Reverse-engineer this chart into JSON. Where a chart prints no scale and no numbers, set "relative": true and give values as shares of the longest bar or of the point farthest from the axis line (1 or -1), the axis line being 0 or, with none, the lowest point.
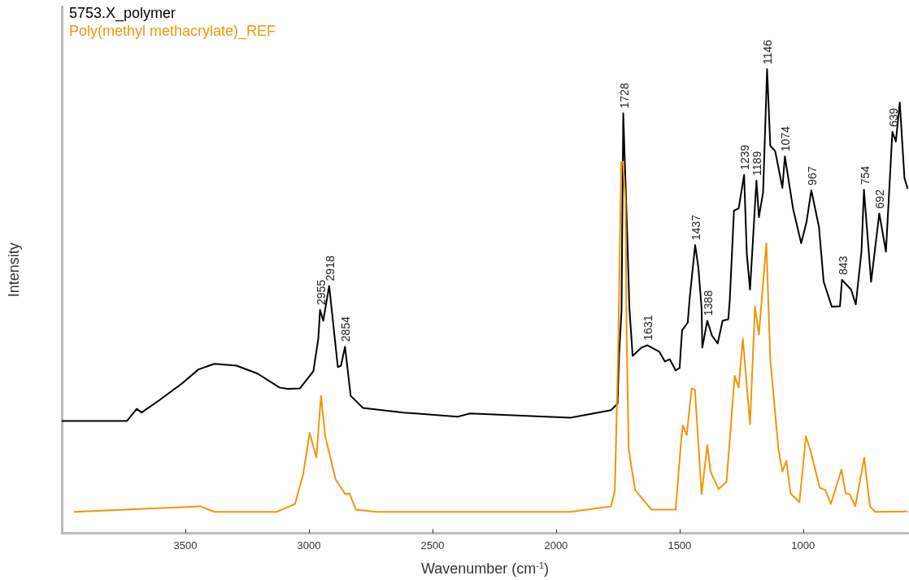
{
  "chart_data": {
    "type": "line",
    "relative": true,
    "xlabel": "Wavenumber (cm$^{-1}$)",
    "ylabel": "Intensity",
    "xlim": [
      4000,
      575
    ],
    "xticks": [
      3500,
      3000,
      2500,
      2000,
      1500,
      1000
    ],
    "legend": "top left",
    "grid": false,
    "marker": "none",
    "line_style": "solid",
    "series": [
      {
        "name": "5753.X_polymer",
        "color": "#000000",
        "x": [
          4000,
          3736,
          3697,
          3677,
          3602,
          3513,
          3447,
          3382,
          3293,
          3208,
          3119,
          3087,
          3037,
          2982,
          2962,
          2955,
          2942,
          2918,
          2883,
          2870,
          2854,
          2831,
          2781,
          2617,
          2398,
          2348,
          1942,
          1778,
          1751,
          1745,
          1735,
          1728,
          1713,
          1703,
          1690,
          1654,
          1631,
          1582,
          1559,
          1540,
          1516,
          1500,
          1490,
          1467,
          1460,
          1437,
          1424,
          1411,
          1408,
          1388,
          1369,
          1346,
          1326,
          1303,
          1297,
          1280,
          1261,
          1239,
          1228,
          1215,
          1189,
          1179,
          1162,
          1146,
          1133,
          1113,
          1084,
          1074,
          1041,
          1008,
          986,
          967,
          936,
          917,
          884,
          851,
          843,
          806,
          787,
          764,
          754,
          725,
          692,
          665,
          639,
          625,
          609,
          590,
          577
        ],
        "values": [
          0.242,
          0.242,
          0.268,
          0.26,
          0.288,
          0.323,
          0.353,
          0.365,
          0.361,
          0.344,
          0.314,
          0.311,
          0.312,
          0.349,
          0.419,
          0.481,
          0.458,
          0.533,
          0.358,
          0.361,
          0.402,
          0.296,
          0.27,
          0.26,
          0.251,
          0.258,
          0.249,
          0.265,
          0.279,
          0.384,
          0.479,
          0.905,
          0.66,
          0.484,
          0.382,
          0.4,
          0.405,
          0.391,
          0.37,
          0.375,
          0.351,
          0.356,
          0.437,
          0.454,
          0.502,
          0.621,
          0.572,
          0.484,
          0.4,
          0.458,
          0.426,
          0.409,
          0.458,
          0.461,
          0.502,
          0.695,
          0.7,
          0.772,
          0.602,
          0.525,
          0.76,
          0.681,
          0.735,
          1,
          0.835,
          0.823,
          0.744,
          0.812,
          0.7,
          0.625,
          0.672,
          0.739,
          0.66,
          0.542,
          0.488,
          0.489,
          0.546,
          0.525,
          0.493,
          0.607,
          0.74,
          0.542,
          0.689,
          0.607,
          0.865,
          0.844,
          0.928,
          0.765,
          0.742
        ]
      },
      {
        "name": "Poly(methyl methacrylate)_REF",
        "color": "#f0960a",
        "x": [
          3951,
          3439,
          3383,
          3131,
          3056,
          3023,
          2997,
          2970,
          2951,
          2934,
          2892,
          2853,
          2836,
          2810,
          2728,
          1942,
          1778,
          1762,
          1749,
          1736,
          1729,
          1719,
          1714,
          1706,
          1680,
          1614,
          1516,
          1494,
          1487,
          1471,
          1451,
          1438,
          1411,
          1388,
          1375,
          1342,
          1310,
          1277,
          1261,
          1244,
          1215,
          1195,
          1179,
          1149,
          1133,
          1100,
          1084,
          1068,
          1051,
          1015,
          989,
          970,
          933,
          910,
          888,
          845,
          828,
          812,
          789,
          753,
          730,
          708,
          577
        ],
        "values": [
          0.046,
          0.058,
          0.046,
          0.046,
          0.063,
          0.128,
          0.216,
          0.163,
          0.296,
          0.209,
          0.116,
          0.084,
          0.086,
          0.051,
          0.046,
          0.046,
          0.058,
          0.093,
          0.384,
          0.8,
          0.8,
          0.718,
          0.414,
          0.181,
          0.093,
          0.051,
          0.051,
          0.198,
          0.232,
          0.212,
          0.312,
          0.309,
          0.084,
          0.19,
          0.133,
          0.095,
          0.111,
          0.339,
          0.314,
          0.419,
          0.235,
          0.488,
          0.428,
          0.625,
          0.374,
          0.181,
          0.133,
          0.156,
          0.086,
          0.067,
          0.209,
          0.177,
          0.098,
          0.093,
          0.063,
          0.137,
          0.086,
          0.084,
          0.058,
          0.163,
          0.058,
          0.046,
          0.047
        ]
      }
    ],
    "annotations": [
      {
        "text": "2955",
        "x": 2955,
        "y": 0.481
      },
      {
        "text": "2918",
        "x": 2918,
        "y": 0.533
      },
      {
        "text": "2854",
        "x": 2854,
        "y": 0.402
      },
      {
        "text": "1728",
        "x": 1728,
        "y": 0.905
      },
      {
        "text": "1631",
        "x": 1631,
        "y": 0.405
      },
      {
        "text": "1437",
        "x": 1437,
        "y": 0.621
      },
      {
        "text": "1388",
        "x": 1388,
        "y": 0.458
      },
      {
        "text": "1239",
        "x": 1239,
        "y": 0.772
      },
      {
        "text": "1189",
        "x": 1189,
        "y": 0.76
      },
      {
        "text": "1146",
        "x": 1146,
        "y": 1
      },
      {
        "text": "1074",
        "x": 1074,
        "y": 0.812
      },
      {
        "text": "967",
        "x": 967,
        "y": 0.739
      },
      {
        "text": "843",
        "x": 843,
        "y": 0.546
      },
      {
        "text": "754",
        "x": 754,
        "y": 0.74
      },
      {
        "text": "692",
        "x": 692,
        "y": 0.689
      },
      {
        "text": "639",
        "x": 639,
        "y": 0.865
      }
    ]
  }
}
